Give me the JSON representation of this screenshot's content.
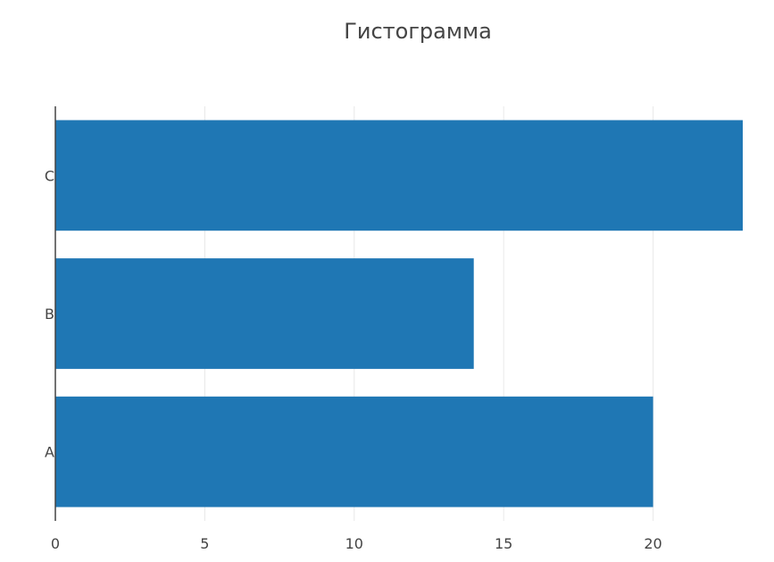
{
  "chart_data": {
    "type": "bar",
    "orientation": "horizontal",
    "title": "Гистограмма",
    "xlabel": "",
    "ylabel": "",
    "categories": [
      "A",
      "B",
      "C"
    ],
    "values": [
      20,
      14,
      23
    ],
    "xlim": [
      0,
      23
    ],
    "x_ticks": [
      0,
      5,
      10,
      15,
      20
    ],
    "grid": true,
    "legend": "none",
    "colors": {
      "bar": "#1f77b4",
      "grid": "#e8e8e8",
      "axis": "#444444",
      "text": "#444444"
    }
  }
}
